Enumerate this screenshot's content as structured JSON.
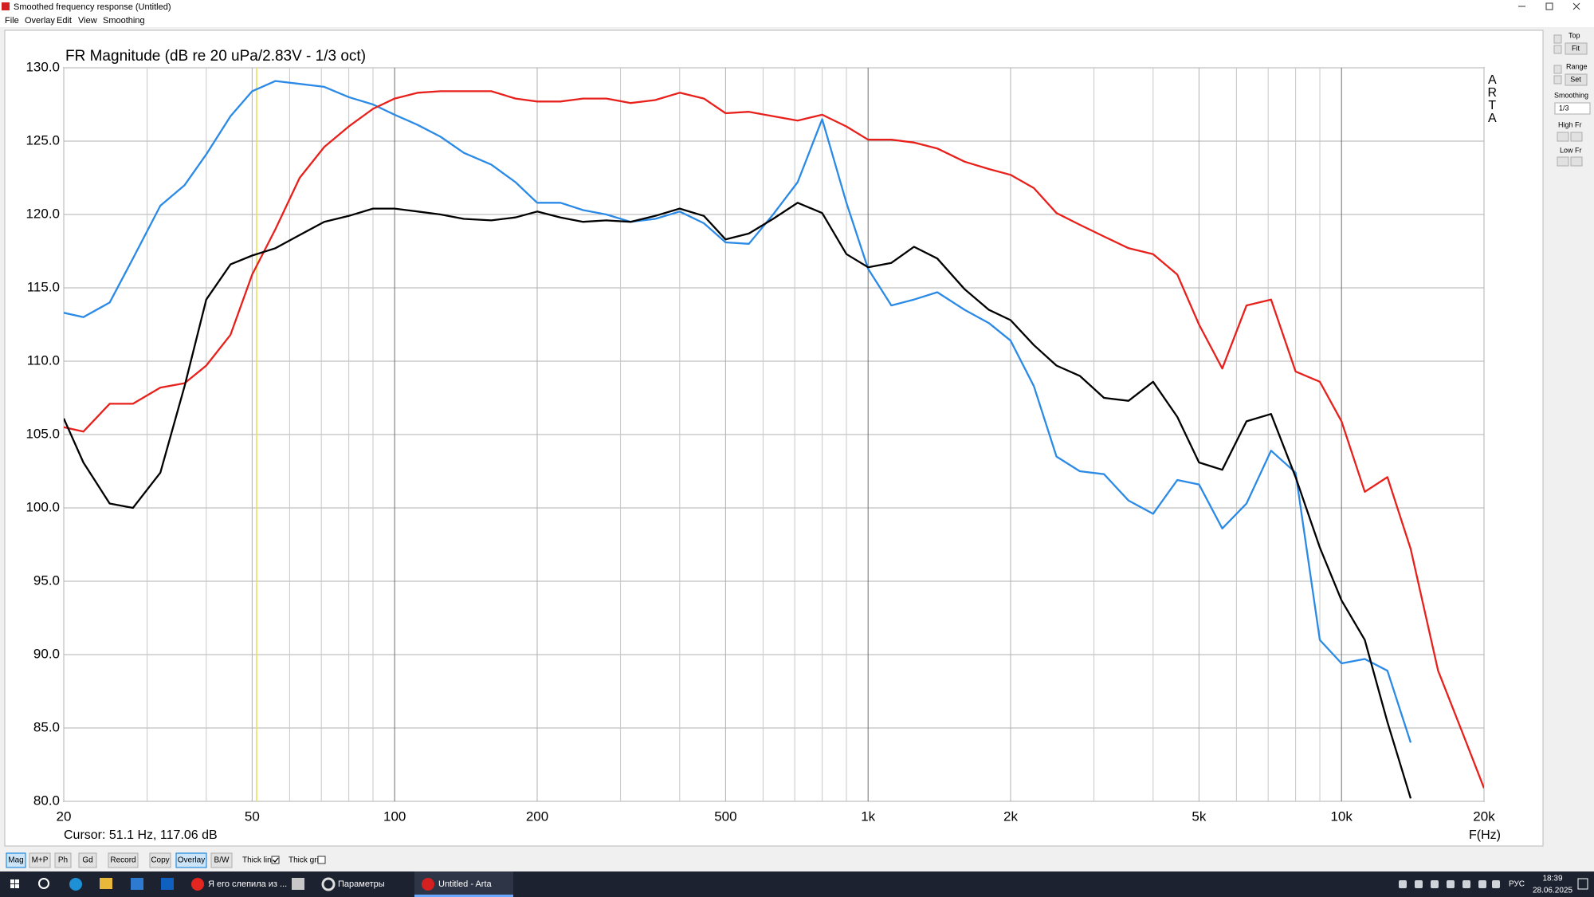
{
  "window": {
    "title": "Smoothed frequency response (Untitled)"
  },
  "menu": [
    "File",
    "Overlay",
    "Edit",
    "View",
    "Smoothing"
  ],
  "chart_data": {
    "type": "line",
    "title": "FR Magnitude (dB re 20 uPa/2.83V - 1/3 oct)",
    "x_label": "F(Hz)",
    "cursor_text": "Cursor: 51.1 Hz, 117.06 dB",
    "cursor_x": 51.1,
    "cursor_color": "#e6e04a",
    "branding": "ARTA",
    "log_x": true,
    "grid": true,
    "xlim": [
      20,
      20000
    ],
    "ylim": [
      80,
      130
    ],
    "xticks": [
      20,
      50,
      100,
      200,
      500,
      {
        "value": 1000,
        "label": "1k"
      },
      {
        "value": 2000,
        "label": "2k"
      },
      {
        "value": 5000,
        "label": "5k"
      },
      {
        "value": 10000,
        "label": "10k"
      },
      {
        "value": 20000,
        "label": "20k"
      }
    ],
    "xminorticks": [
      30,
      40,
      60,
      70,
      80,
      90,
      300,
      400,
      600,
      700,
      800,
      900,
      3000,
      4000,
      6000,
      7000,
      8000,
      9000
    ],
    "yticks": [
      {
        "value": 80,
        "label": "80.0"
      },
      {
        "value": 85,
        "label": "85.0"
      },
      {
        "value": 90,
        "label": "90.0"
      },
      {
        "value": 95,
        "label": "95.0"
      },
      {
        "value": 100,
        "label": "100.0"
      },
      {
        "value": 105,
        "label": "105.0"
      },
      {
        "value": 110,
        "label": "110.0"
      },
      {
        "value": 115,
        "label": "115.0"
      },
      {
        "value": 120,
        "label": "120.0"
      },
      {
        "value": 125,
        "label": "125.0"
      },
      {
        "value": 130,
        "label": "130.0"
      }
    ],
    "x": [
      20,
      22,
      25,
      28,
      32,
      36,
      40,
      45,
      50,
      56,
      63,
      71,
      80,
      90,
      100,
      112,
      125,
      140,
      160,
      180,
      200,
      224,
      250,
      280,
      315,
      355,
      400,
      450,
      500,
      560,
      630,
      710,
      800,
      900,
      1000,
      1120,
      1250,
      1400,
      1600,
      1800,
      2000,
      2240,
      2500,
      2800,
      3150,
      3550,
      4000,
      4500,
      5000,
      5600,
      6300,
      7100,
      8000,
      9000,
      10000,
      11200,
      12500,
      14000,
      16000,
      18000,
      20000
    ],
    "series": [
      {
        "color": "#2a8ae6",
        "values": [
          113.3,
          113.0,
          114.0,
          117.0,
          120.6,
          122.0,
          124.1,
          126.7,
          128.4,
          129.1,
          128.9,
          128.7,
          128.0,
          127.5,
          126.8,
          126.1,
          125.3,
          124.2,
          123.4,
          122.2,
          120.8,
          120.8,
          120.3,
          120.0,
          119.5,
          119.7,
          120.2,
          119.4,
          118.1,
          118.0,
          120.0,
          122.2,
          126.5,
          120.8,
          116.3,
          113.8,
          114.2,
          114.7,
          113.5,
          112.6,
          111.4,
          108.3,
          103.5,
          102.5,
          102.3,
          100.5,
          99.6,
          101.9,
          101.6,
          98.6,
          100.3,
          103.9,
          102.4,
          91.0,
          89.4,
          89.7,
          88.9,
          84.0,
          null,
          null,
          null
        ]
      },
      {
        "color": "#e8201c",
        "values": [
          105.5,
          105.2,
          107.1,
          107.1,
          108.2,
          108.5,
          109.7,
          111.8,
          115.9,
          119.0,
          122.5,
          124.6,
          126.0,
          127.2,
          127.9,
          128.3,
          128.4,
          128.4,
          128.4,
          127.9,
          127.7,
          127.7,
          127.9,
          127.9,
          127.6,
          127.8,
          128.3,
          127.9,
          126.9,
          127.0,
          126.7,
          126.4,
          126.8,
          126.0,
          125.1,
          125.1,
          124.9,
          124.5,
          123.6,
          123.1,
          122.7,
          121.8,
          120.1,
          119.3,
          118.5,
          117.7,
          117.3,
          115.9,
          112.5,
          109.5,
          113.8,
          114.2,
          109.3,
          108.6,
          105.9,
          101.1,
          102.1,
          97.2,
          88.9,
          84.7,
          80.9
        ]
      },
      {
        "color": "#000000",
        "values": [
          106.1,
          103.1,
          100.3,
          100.0,
          102.4,
          108.3,
          114.2,
          116.6,
          117.2,
          117.7,
          118.6,
          119.5,
          119.9,
          120.4,
          120.4,
          120.2,
          120.0,
          119.7,
          119.6,
          119.8,
          120.2,
          119.8,
          119.5,
          119.6,
          119.5,
          119.9,
          120.4,
          119.9,
          118.3,
          118.7,
          119.7,
          120.8,
          120.1,
          117.3,
          116.4,
          116.7,
          117.8,
          117.0,
          114.9,
          113.5,
          112.8,
          111.1,
          109.7,
          109.0,
          107.5,
          107.3,
          108.6,
          106.2,
          103.1,
          102.6,
          105.9,
          106.4,
          102.1,
          97.3,
          93.7,
          91.0,
          85.4,
          80.2,
          null,
          null,
          null
        ]
      }
    ]
  },
  "side_panel": {
    "top": "Top",
    "fit": "Fit",
    "range": "Range",
    "set": "Set",
    "smoothing": "Smoothing",
    "smoothing_value": "1/3",
    "high_fr": "High Fr",
    "low_fr": "Low Fr"
  },
  "toolbar": {
    "buttons": [
      "Mag",
      "M+P",
      "Ph",
      "Gd",
      "Record",
      "Copy",
      "Overlay",
      "B/W"
    ],
    "checkboxes": [
      "Thick line",
      "Thick grid"
    ]
  },
  "taskbar": {
    "apps": [
      "Я его слепила из ...",
      "Параметры",
      "Untitled - Arta"
    ],
    "language": "РУС",
    "time": "18:39",
    "date": "28.06.2025"
  }
}
